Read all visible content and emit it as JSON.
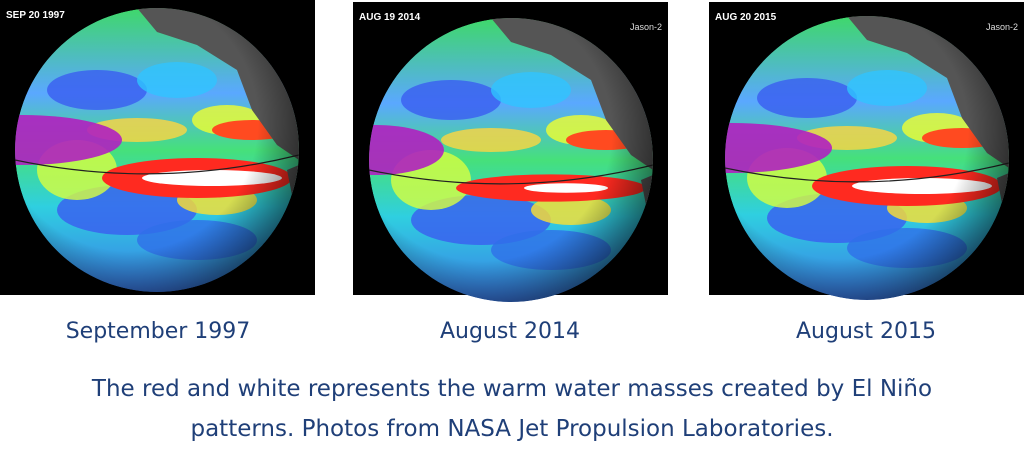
{
  "panels": [
    {
      "stamp": "SEP 20 1997",
      "caption": "September 1997"
    },
    {
      "stamp": "AUG 19 2014",
      "satellite": "Jason-2",
      "caption": "August 2014"
    },
    {
      "stamp": "AUG 20 2015",
      "satellite": "Jason-2",
      "caption": "August 2015"
    }
  ],
  "description": {
    "lines": [
      "The red and white represents the warm water masses created by El Niño",
      "patterns.  Photos from NASA Jet Propulsion Laboratories."
    ]
  }
}
